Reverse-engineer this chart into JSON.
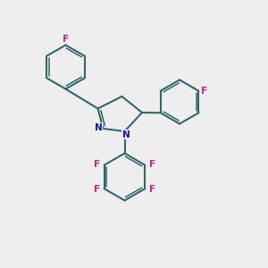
{
  "background_color": "#eeeeee",
  "bond_color": "#2d6b6b",
  "N_color": "#1010cc",
  "F_color": "#cc2288",
  "line_width": 1.5,
  "fig_width": 3.0,
  "fig_height": 3.0,
  "dpi": 100,
  "xlim": [
    0,
    10
  ],
  "ylim": [
    0,
    10
  ]
}
